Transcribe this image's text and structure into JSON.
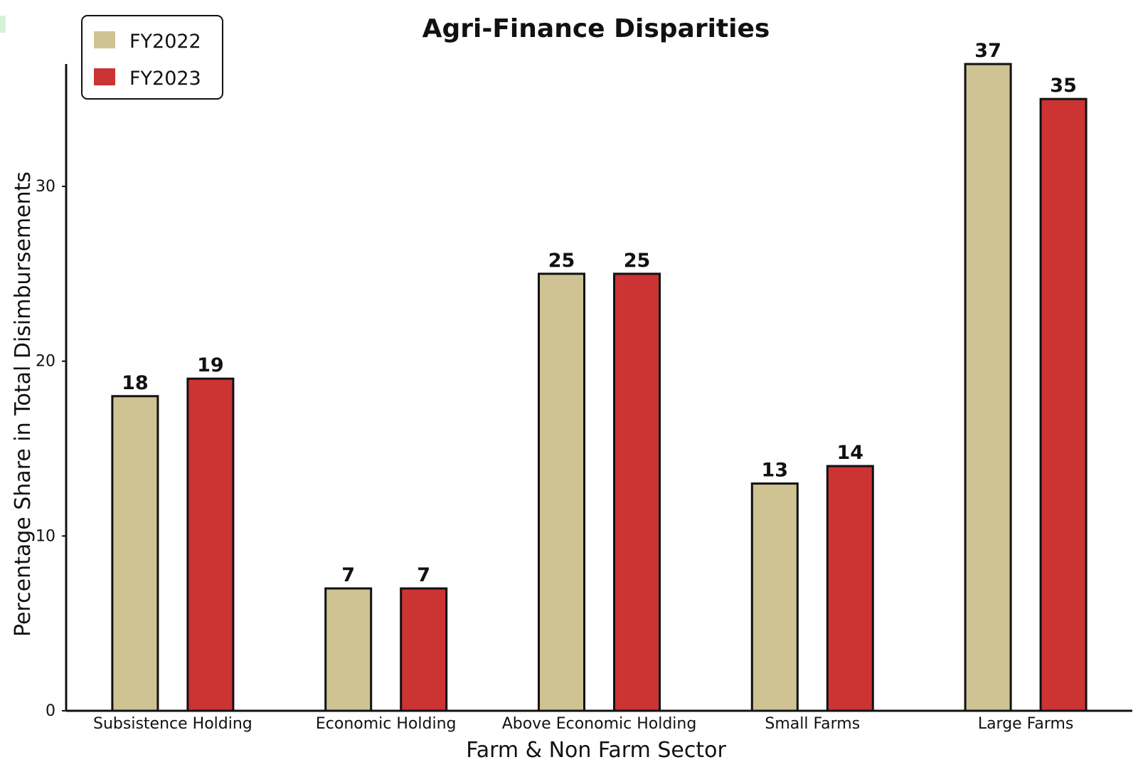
{
  "chart_data": {
    "type": "bar",
    "title": "Agri-Finance Disparities",
    "xlabel": "Farm & Non Farm Sector",
    "ylabel": "Percentage Share in Total Disimbursements",
    "categories": [
      "Subsistence Holding",
      "Economic Holding",
      "Above Economic Holding",
      "Small Farms",
      "Large Farms"
    ],
    "series": [
      {
        "name": "FY2022",
        "values": [
          18,
          7,
          25,
          13,
          37
        ],
        "color": "#cfc393"
      },
      {
        "name": "FY2023",
        "values": [
          19,
          7,
          25,
          14,
          35
        ],
        "color": "#cc3333"
      }
    ],
    "ylim": [
      0,
      37
    ],
    "yticks": [
      "0",
      "10",
      "20",
      "30"
    ],
    "grid": false,
    "legend_position": "top-left",
    "data_labels": true
  }
}
